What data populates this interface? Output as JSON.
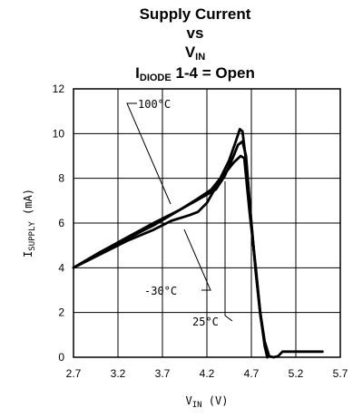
{
  "chart_data": {
    "type": "line",
    "title": {
      "line1": "Supply Current",
      "line2": "vs",
      "line3_main": "V",
      "line3_sub": "IN",
      "line4_main": "I",
      "line4_sub": "DIODE",
      "line4_rest": " 1-4 = Open"
    },
    "xlabel": {
      "main": "V",
      "sub": "IN",
      "rest": " (V)"
    },
    "ylabel": {
      "main": "I",
      "sub": "SUPPLY",
      "rest": " (mA)"
    },
    "xlim": [
      2.7,
      5.7
    ],
    "ylim": [
      0,
      12
    ],
    "x_ticks": [
      "2.7",
      "3.2",
      "3.7",
      "4.2",
      "4.7",
      "5.2",
      "5.7"
    ],
    "y_ticks": [
      "0",
      "2",
      "4",
      "6",
      "8",
      "10",
      "12"
    ],
    "grid": true,
    "series": [
      {
        "name": "100°C",
        "x": [
          2.7,
          3.0,
          3.3,
          3.6,
          3.9,
          4.1,
          4.25,
          4.35,
          4.45,
          4.52,
          4.57,
          4.6,
          4.64,
          4.7,
          4.75,
          4.8,
          4.85,
          4.88
        ],
        "y": [
          4.0,
          4.7,
          5.3,
          5.9,
          6.6,
          7.1,
          7.5,
          8.0,
          8.8,
          9.6,
          10.2,
          10.1,
          8.8,
          6.0,
          3.8,
          1.9,
          0.6,
          0.0
        ]
      },
      {
        "name": "25°C",
        "x": [
          2.7,
          3.0,
          3.3,
          3.6,
          3.9,
          4.1,
          4.3,
          4.4,
          4.5,
          4.55,
          4.6,
          4.64,
          4.7,
          4.75,
          4.8,
          4.85,
          4.9,
          4.95,
          5.0,
          5.05,
          5.2,
          5.5
        ],
        "y": [
          4.0,
          4.7,
          5.35,
          6.0,
          6.6,
          7.05,
          7.5,
          8.1,
          9.0,
          9.5,
          9.65,
          9.0,
          6.0,
          3.8,
          2.0,
          0.7,
          0.05,
          0.0,
          0.05,
          0.25,
          0.25,
          0.25
        ]
      },
      {
        "name": "-30°C",
        "x": [
          2.7,
          3.0,
          3.3,
          3.6,
          3.8,
          4.0,
          4.1,
          4.2,
          4.3,
          4.4,
          4.5,
          4.58,
          4.62,
          4.68,
          4.75,
          4.8,
          4.85,
          4.88
        ],
        "y": [
          4.0,
          4.6,
          5.2,
          5.7,
          6.1,
          6.35,
          6.5,
          6.9,
          7.6,
          8.2,
          8.7,
          9.0,
          8.9,
          6.5,
          4.0,
          2.0,
          0.5,
          0.0
        ]
      }
    ],
    "annotations": [
      "100°C",
      "25°C",
      "-30°C"
    ]
  }
}
